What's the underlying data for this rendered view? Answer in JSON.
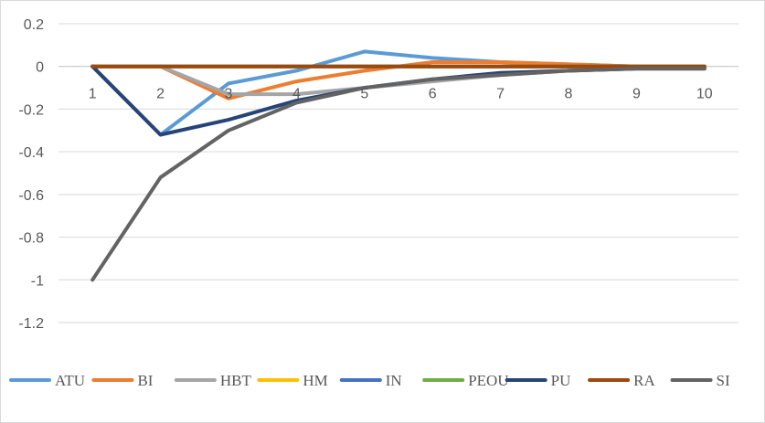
{
  "chart_data": {
    "type": "line",
    "title": "",
    "xlabel": "",
    "ylabel": "",
    "x": [
      1,
      2,
      3,
      4,
      5,
      6,
      7,
      8,
      9,
      10
    ],
    "ylim": [
      -1.2,
      0.2
    ],
    "yticks": [
      0.2,
      0,
      -0.2,
      -0.4,
      -0.6,
      -0.8,
      -1,
      -1.2
    ],
    "ytick_labels": [
      "0.2",
      "0",
      "-0.2",
      "-0.4",
      "-0.6",
      "-0.8",
      "-1",
      "-1.2"
    ],
    "grid": true,
    "legend_position": "bottom",
    "series": [
      {
        "name": "ATU",
        "color": "#5B9BD5",
        "values": [
          0,
          -0.32,
          -0.08,
          -0.02,
          0.07,
          0.04,
          0.02,
          0.01,
          0.0,
          0.0
        ]
      },
      {
        "name": "BI",
        "color": "#ED7D31",
        "values": [
          0,
          0,
          -0.15,
          -0.07,
          -0.02,
          0.02,
          0.02,
          0.01,
          0.0,
          0.0
        ]
      },
      {
        "name": "HBT",
        "color": "#A5A5A5",
        "values": [
          0,
          0,
          -0.13,
          -0.13,
          -0.1,
          -0.07,
          -0.04,
          -0.02,
          -0.01,
          -0.01
        ]
      },
      {
        "name": "HM",
        "color": "#FFC000",
        "values": [
          0,
          0,
          0,
          0,
          0,
          0,
          0,
          0,
          0,
          0
        ]
      },
      {
        "name": "IN",
        "color": "#4472C4",
        "values": [
          0,
          0,
          0,
          0,
          0,
          0,
          0,
          0,
          0,
          0
        ]
      },
      {
        "name": "PEOU",
        "color": "#70AD47",
        "values": [
          0,
          0,
          0,
          0,
          0,
          0,
          0,
          0,
          0,
          0
        ]
      },
      {
        "name": "PU",
        "color": "#264478",
        "values": [
          0,
          -0.32,
          -0.25,
          -0.16,
          -0.1,
          -0.06,
          -0.03,
          -0.02,
          -0.01,
          -0.01
        ]
      },
      {
        "name": "RA",
        "color": "#9E480E",
        "values": [
          0,
          0,
          0,
          0,
          0,
          0,
          0,
          0,
          0,
          0
        ]
      },
      {
        "name": "SI",
        "color": "#636363",
        "values": [
          -1,
          -0.52,
          -0.3,
          -0.17,
          -0.1,
          -0.06,
          -0.04,
          -0.02,
          -0.01,
          -0.01
        ]
      }
    ]
  }
}
